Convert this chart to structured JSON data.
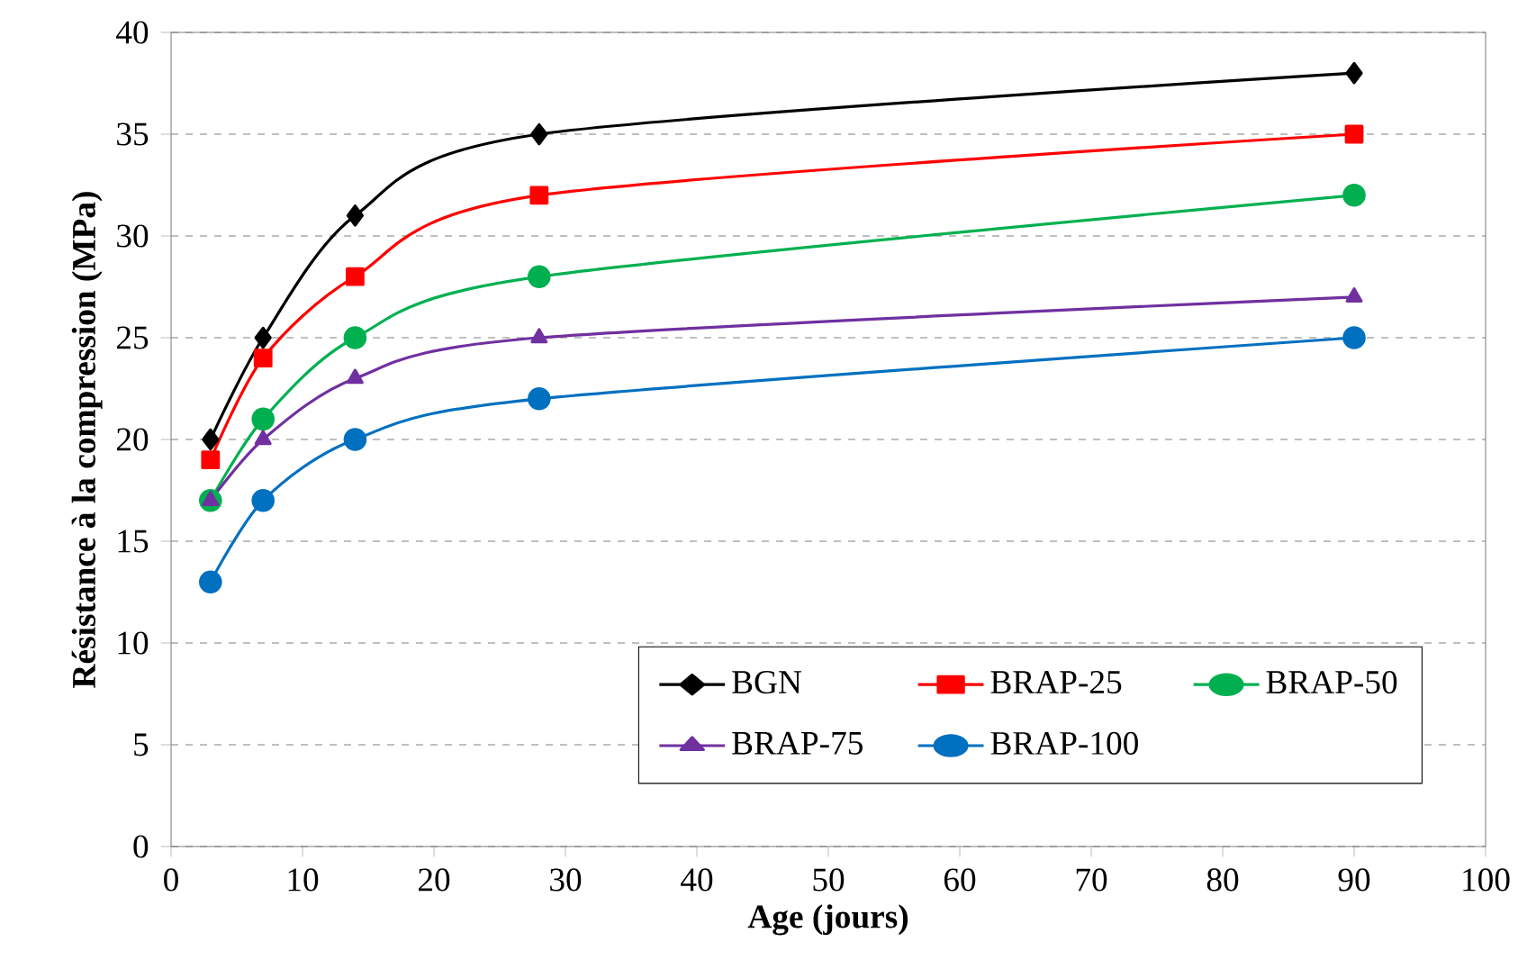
{
  "chart_data": {
    "type": "line",
    "xlabel": "Age (jours)",
    "ylabel": "Résistance à la compression (MPa)",
    "x": [
      3,
      7,
      14,
      28,
      90
    ],
    "series": [
      {
        "name": "BGN",
        "color": "#000000",
        "marker": "diamond",
        "values": [
          20,
          25,
          31,
          35,
          38
        ]
      },
      {
        "name": "BRAP-25",
        "color": "#ff0000",
        "marker": "square",
        "values": [
          19,
          24,
          28,
          32,
          35
        ]
      },
      {
        "name": "BRAP-50",
        "color": "#00b050",
        "marker": "circle",
        "values": [
          17,
          21,
          25,
          28,
          32
        ]
      },
      {
        "name": "BRAP-75",
        "color": "#7030a0",
        "marker": "triangle",
        "values": [
          17,
          20,
          23,
          25,
          27
        ]
      },
      {
        "name": "BRAP-100",
        "color": "#0070c0",
        "marker": "circle",
        "values": [
          13,
          17,
          20,
          22,
          25
        ]
      }
    ],
    "xlim": [
      0,
      100
    ],
    "xticks": [
      0,
      10,
      20,
      30,
      40,
      50,
      60,
      70,
      80,
      90,
      100
    ],
    "ylim": [
      0,
      40
    ],
    "yticks": [
      0,
      5,
      10,
      15,
      20,
      25,
      30,
      35,
      40
    ],
    "grid": "y",
    "legend": "bottom right"
  }
}
